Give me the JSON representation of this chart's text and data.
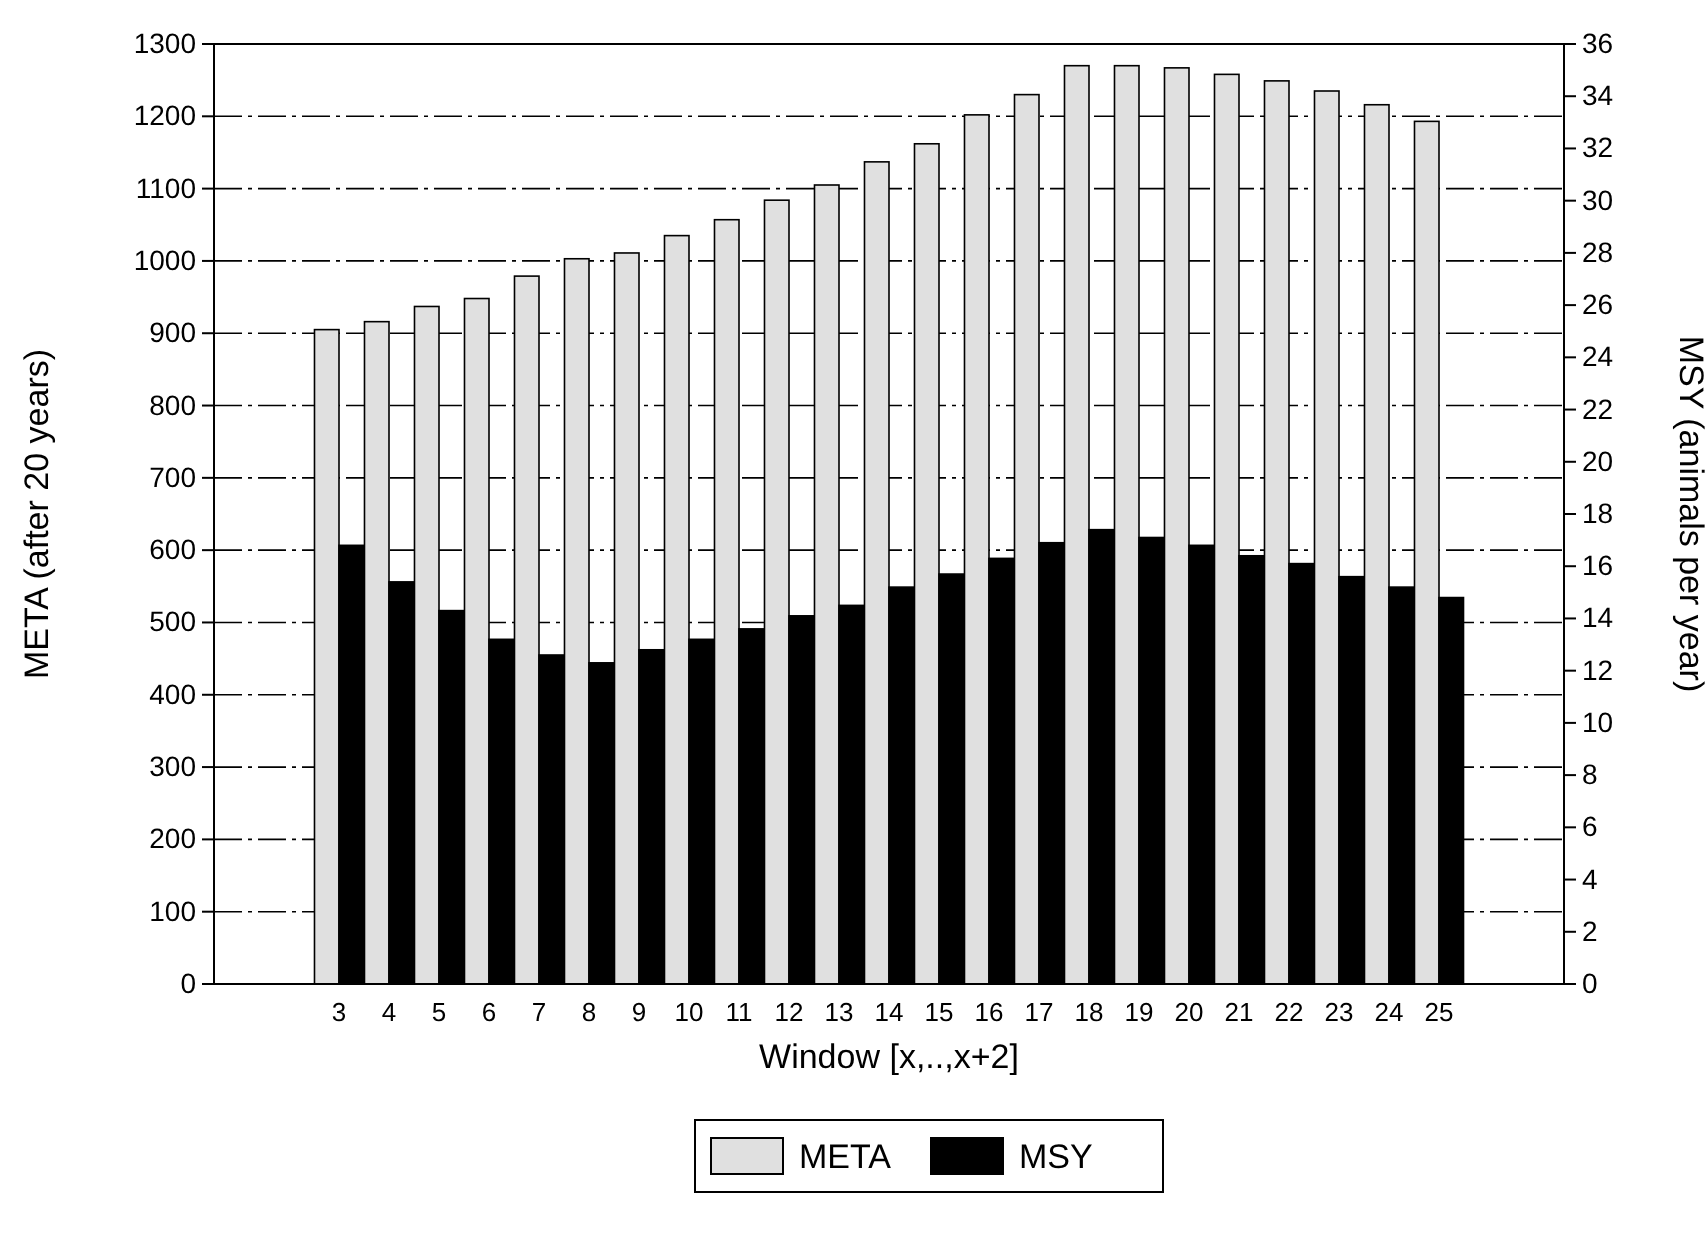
{
  "chart_data": {
    "type": "bar",
    "xlabel": "Window [x,..,x+2]",
    "ylabel": "META (after 20 years)",
    "y2label": "MSY (animals per year)",
    "categories": [
      null,
      null,
      "3",
      "4",
      "5",
      "6",
      "7",
      "8",
      "9",
      "10",
      "11",
      "12",
      "13",
      "14",
      "15",
      "16",
      "17",
      "18",
      "19",
      "20",
      "21",
      "22",
      "23",
      "24",
      "25",
      null,
      null
    ],
    "series": [
      {
        "name": "META",
        "color": "#e0e0e0",
        "values": [
          null,
          null,
          905,
          916,
          937,
          948,
          979,
          1003,
          1011,
          1035,
          1057,
          1084,
          1105,
          1137,
          1162,
          1202,
          1230,
          1270,
          1270,
          1267,
          1258,
          1249,
          1235,
          1216,
          1193,
          null,
          null
        ]
      },
      {
        "name": "MSY",
        "color": "#000000",
        "axis": "y2",
        "values": [
          null,
          null,
          16.8,
          15.4,
          14.3,
          13.2,
          12.6,
          12.3,
          12.8,
          13.2,
          13.6,
          14.1,
          14.5,
          15.2,
          15.7,
          16.3,
          16.9,
          17.4,
          17.1,
          16.8,
          16.4,
          16.1,
          15.6,
          15.2,
          14.8,
          null,
          null
        ]
      }
    ],
    "ylim": [
      0,
      1300
    ],
    "yticks": [
      0,
      100,
      200,
      300,
      400,
      500,
      600,
      700,
      800,
      900,
      1000,
      1100,
      1200,
      1300
    ],
    "y2lim": [
      0,
      36
    ],
    "y2ticks": [
      0,
      2,
      4,
      6,
      8,
      10,
      12,
      14,
      16,
      18,
      20,
      22,
      24,
      26,
      28,
      30,
      32,
      34,
      36
    ],
    "grid": "y",
    "legend": "bottom"
  }
}
